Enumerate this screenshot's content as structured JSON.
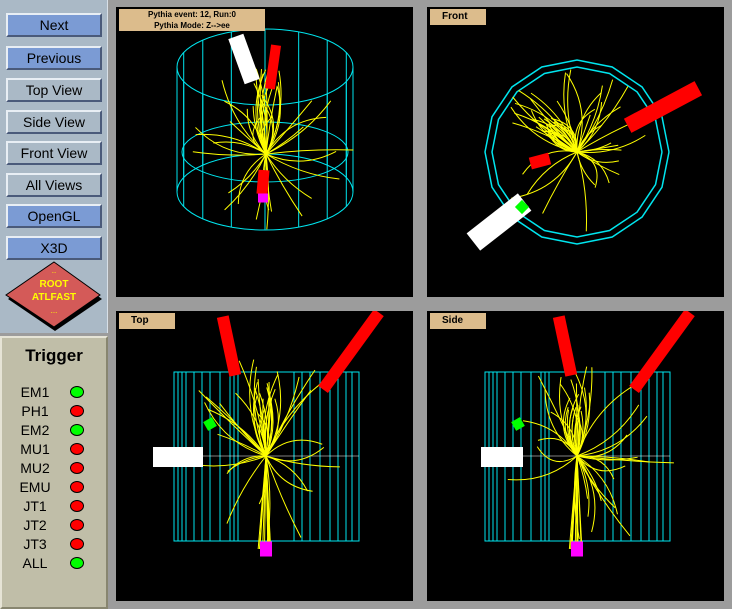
{
  "controls": {
    "buttons": [
      {
        "label": "Next",
        "style": "blue"
      },
      {
        "label": "Previous",
        "style": "blue"
      },
      {
        "label": "Top View",
        "style": "grey"
      },
      {
        "label": "Side View",
        "style": "grey"
      },
      {
        "label": "Front View",
        "style": "grey"
      },
      {
        "label": "All Views",
        "style": "grey"
      },
      {
        "label": "OpenGL",
        "style": "blue"
      },
      {
        "label": "X3D",
        "style": "blue"
      }
    ],
    "logo": {
      "top": "..",
      "line1": "ROOT",
      "line2": "ATLFAST",
      "bottom": "...",
      "color": "#d45a58"
    }
  },
  "trigger": {
    "title": "Trigger",
    "items": [
      {
        "label": "EM1",
        "state": "on"
      },
      {
        "label": "PH1",
        "state": "off"
      },
      {
        "label": "EM2",
        "state": "on"
      },
      {
        "label": "MU1",
        "state": "off"
      },
      {
        "label": "MU2",
        "state": "off"
      },
      {
        "label": "EMU",
        "state": "off"
      },
      {
        "label": "JT1",
        "state": "off"
      },
      {
        "label": "JT2",
        "state": "off"
      },
      {
        "label": "JT3",
        "state": "off"
      },
      {
        "label": "ALL",
        "state": "on"
      }
    ],
    "colors": {
      "on": "#00ff00",
      "off": "#ff0000"
    }
  },
  "views": {
    "perspective": {
      "line1": "Pythia event: 12, Run:0",
      "line2": "Pythia Mode: Z-->ee"
    },
    "front": {
      "label": "Front"
    },
    "top": {
      "label": "Top"
    },
    "side": {
      "label": "Side"
    }
  },
  "colors": {
    "detector": "#00e5ee",
    "tracks": "#ffff00",
    "jet": "#ff0000",
    "electron": "#ffffff",
    "muon": "#00ff00",
    "beam": "#ff00ff"
  }
}
